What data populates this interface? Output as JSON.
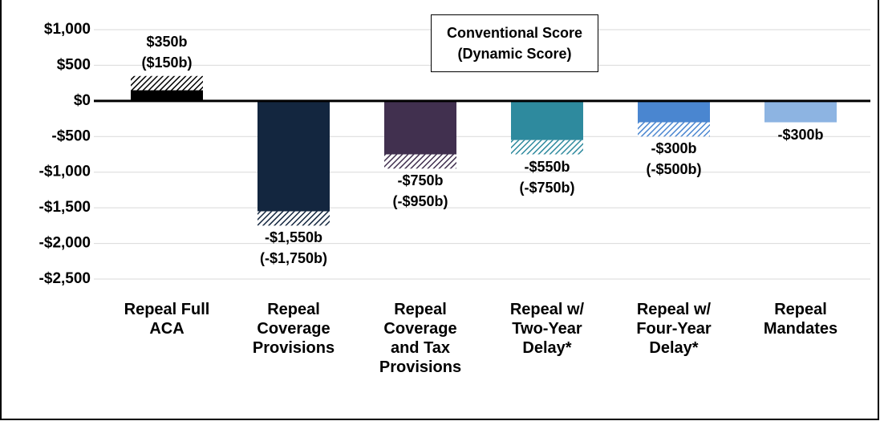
{
  "chart_data": {
    "type": "bar",
    "categories": [
      "Repeal Full\nACA",
      "Repeal\nCoverage\nProvisions",
      "Repeal\nCoverage\nand Tax\nProvisions",
      "Repeal w/\nTwo-Year\nDelay*",
      "Repeal w/\nFour-Year\nDelay*",
      "Repeal\nMandates"
    ],
    "series": [
      {
        "name": "Conventional Score",
        "colors": [
          "#000000",
          "#13263f",
          "#41304f",
          "#2e8a9e",
          "#4a86d0",
          "#8db4e2"
        ],
        "values": [
          350,
          -1550,
          -750,
          -550,
          -300,
          -300
        ],
        "value_labels": [
          "$350b",
          "-$1,550b",
          "-$750b",
          "-$550b",
          "-$300b",
          "-$300b"
        ]
      },
      {
        "name": "(Dynamic Score)",
        "values": [
          150,
          -1750,
          -950,
          -750,
          -500,
          null
        ],
        "value_labels": [
          "($150b)",
          "(-$1,750b)",
          "(-$950b)",
          "(-$750b)",
          "(-$500b)",
          null
        ]
      }
    ],
    "ylim": [
      -2500,
      1000
    ],
    "yticks": [
      {
        "value": -2500,
        "label": "-$2,500"
      },
      {
        "value": -2000,
        "label": "-$2,000"
      },
      {
        "value": -1500,
        "label": "-$1,500"
      },
      {
        "value": -1000,
        "label": "-$1,000"
      },
      {
        "value": -500,
        "label": "-$500"
      },
      {
        "value": 0,
        "label": "$0"
      },
      {
        "value": 500,
        "label": "$500"
      },
      {
        "value": 1000,
        "label": "$1,000"
      }
    ],
    "grid": true
  }
}
